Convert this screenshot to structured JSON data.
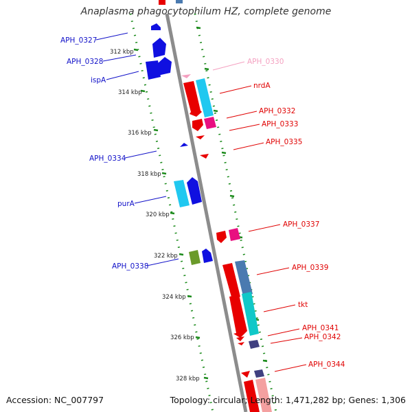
{
  "title": "Anaplasma phagocytophilum HZ, complete genome",
  "footer": {
    "accession": "Accession: NC_007797",
    "summary": "Topology: circular; Length: 1,471,282 bp; Genes: 1,306"
  },
  "kbp_labels": [
    "312 kbp",
    "314 kbp",
    "316 kbp",
    "318 kbp",
    "320 kbp",
    "322 kbp",
    "324 kbp",
    "326 kbp",
    "328 kbp"
  ],
  "left_genes": [
    "APH_0327",
    "APH_0328",
    "ispA",
    "APH_0334",
    "purA",
    "APH_0338"
  ],
  "right_genes": [
    "APH_0330",
    "nrdA",
    "APH_0332",
    "APH_0333",
    "APH_0335",
    "APH_0337",
    "APH_0339",
    "tkt",
    "APH_0341",
    "APH_0342",
    "APH_0344"
  ],
  "colors": {
    "left_label": "#1010c8",
    "right_label": "#e00000",
    "pale_label": "#f4a0c0",
    "dots": "#1a8a1a",
    "backbone": "#888888"
  }
}
